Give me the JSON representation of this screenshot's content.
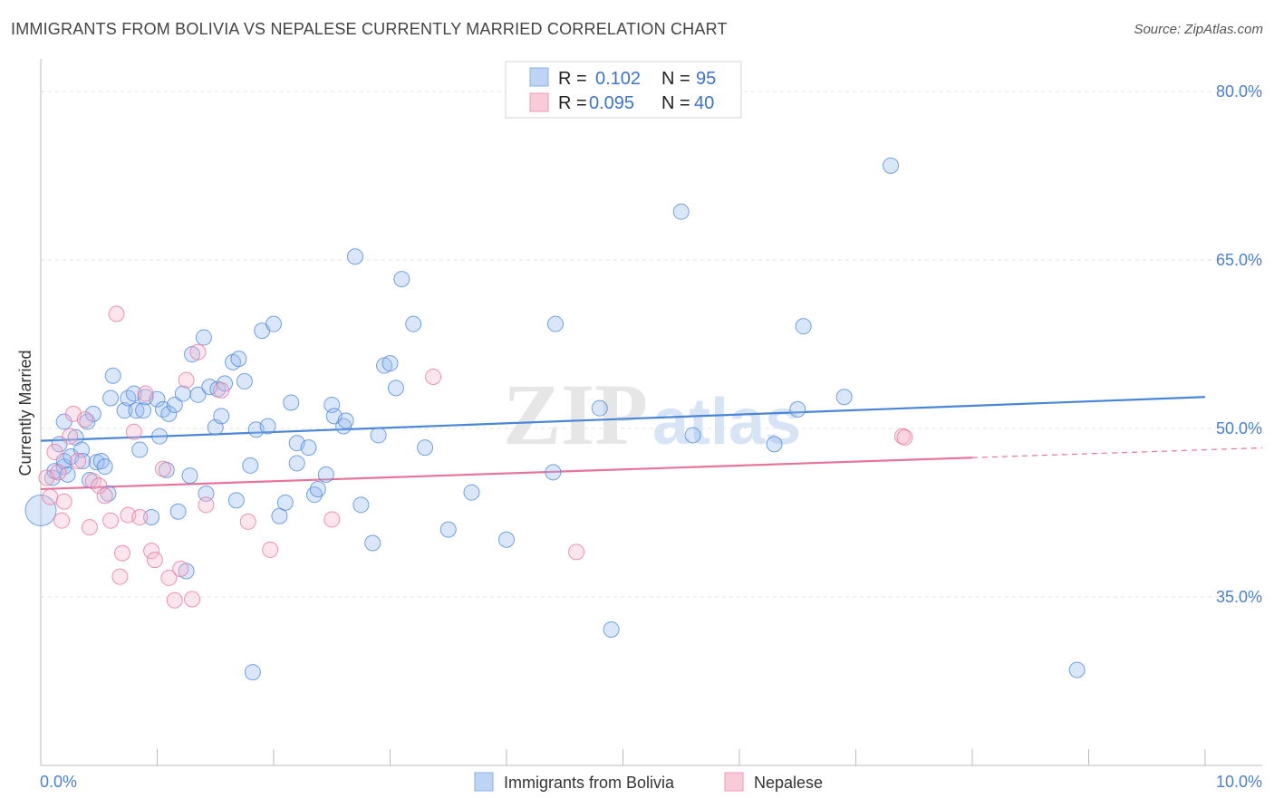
{
  "header": {
    "title": "IMMIGRANTS FROM BOLIVIA VS NEPALESE CURRENTLY MARRIED CORRELATION CHART",
    "source": "Source: ZipAtlas.com"
  },
  "watermark": {
    "zip": "ZIP",
    "atlas": "atlas"
  },
  "legend_top": [
    {
      "r_label": "R =",
      "r_value": "0.102",
      "n_label": "N =",
      "n_value": "95",
      "color": "#9dbff0"
    },
    {
      "r_label": "R =",
      "r_value": "0.095",
      "n_label": "N =",
      "n_value": "40",
      "color": "#f5b8cb"
    }
  ],
  "legend_bottom": [
    {
      "label": "Immigrants from Bolivia",
      "color": "#9dbff0"
    },
    {
      "label": "Nepalese",
      "color": "#f5b8cb"
    }
  ],
  "chart_data": {
    "type": "scatter",
    "ylabel": "Currently Married",
    "xlim": [
      0,
      10
    ],
    "ylim": [
      20,
      82.5
    ],
    "x_tick_labels": {
      "min": "0.0%",
      "max": "10.0%"
    },
    "y_ticks": [
      {
        "value": 35,
        "label": "35.0%"
      },
      {
        "value": 50,
        "label": "50.0%"
      },
      {
        "value": 65,
        "label": "65.0%"
      },
      {
        "value": 80,
        "label": "80.0%"
      }
    ],
    "grid": true,
    "legend_placement": "top-center",
    "series": [
      {
        "name": "Immigrants from Bolivia",
        "color": "#4a86d8",
        "fill": "rgba(150,187,240,0.35)",
        "trend": {
          "x0": 0,
          "y0": 48.9,
          "x1": 10,
          "y1": 52.8,
          "dash_from": null
        },
        "points": [
          [
            0.0,
            42.7
          ],
          [
            0.1,
            45.6
          ],
          [
            0.12,
            46.2
          ],
          [
            0.16,
            48.6
          ],
          [
            0.2,
            46.6
          ],
          [
            0.2,
            50.6
          ],
          [
            0.2,
            47.1
          ],
          [
            0.23,
            45.9
          ],
          [
            0.26,
            47.5
          ],
          [
            0.3,
            49.2
          ],
          [
            0.35,
            48.1
          ],
          [
            0.36,
            47.1
          ],
          [
            0.4,
            50.6
          ],
          [
            0.45,
            51.3
          ],
          [
            0.42,
            45.4
          ],
          [
            0.48,
            47.0
          ],
          [
            0.52,
            47.1
          ],
          [
            0.55,
            46.6
          ],
          [
            0.58,
            44.2
          ],
          [
            0.6,
            52.7
          ],
          [
            0.62,
            54.7
          ],
          [
            0.72,
            51.6
          ],
          [
            0.75,
            52.7
          ],
          [
            0.8,
            53.1
          ],
          [
            0.82,
            51.6
          ],
          [
            0.85,
            48.1
          ],
          [
            0.88,
            51.6
          ],
          [
            0.9,
            52.8
          ],
          [
            0.95,
            42.1
          ],
          [
            1.0,
            52.6
          ],
          [
            1.02,
            49.3
          ],
          [
            1.05,
            51.7
          ],
          [
            1.08,
            46.3
          ],
          [
            1.1,
            51.3
          ],
          [
            1.15,
            52.1
          ],
          [
            1.18,
            42.6
          ],
          [
            1.22,
            53.1
          ],
          [
            1.25,
            37.3
          ],
          [
            1.28,
            45.8
          ],
          [
            1.3,
            56.6
          ],
          [
            1.35,
            53.0
          ],
          [
            1.4,
            58.1
          ],
          [
            1.42,
            44.2
          ],
          [
            1.45,
            53.7
          ],
          [
            1.5,
            50.1
          ],
          [
            1.52,
            53.5
          ],
          [
            1.55,
            51.1
          ],
          [
            1.58,
            54.0
          ],
          [
            1.65,
            55.9
          ],
          [
            1.68,
            43.6
          ],
          [
            1.7,
            56.2
          ],
          [
            1.75,
            54.2
          ],
          [
            1.8,
            46.7
          ],
          [
            1.82,
            28.3
          ],
          [
            1.85,
            49.9
          ],
          [
            1.9,
            58.7
          ],
          [
            1.95,
            50.2
          ],
          [
            2.0,
            59.3
          ],
          [
            2.05,
            42.2
          ],
          [
            2.1,
            43.4
          ],
          [
            2.15,
            52.3
          ],
          [
            2.2,
            48.7
          ],
          [
            2.2,
            46.9
          ],
          [
            2.3,
            48.3
          ],
          [
            2.35,
            44.1
          ],
          [
            2.38,
            44.6
          ],
          [
            2.45,
            45.9
          ],
          [
            2.5,
            52.1
          ],
          [
            2.52,
            51.1
          ],
          [
            2.6,
            50.2
          ],
          [
            2.62,
            50.7
          ],
          [
            2.7,
            65.3
          ],
          [
            2.75,
            43.2
          ],
          [
            2.85,
            39.8
          ],
          [
            2.9,
            49.4
          ],
          [
            2.95,
            55.6
          ],
          [
            3.0,
            55.8
          ],
          [
            3.05,
            53.6
          ],
          [
            3.1,
            63.3
          ],
          [
            3.2,
            59.3
          ],
          [
            3.3,
            48.3
          ],
          [
            3.5,
            41.0
          ],
          [
            3.7,
            44.3
          ],
          [
            4.0,
            40.1
          ],
          [
            4.4,
            46.1
          ],
          [
            4.42,
            59.3
          ],
          [
            4.8,
            51.8
          ],
          [
            4.9,
            32.1
          ],
          [
            5.5,
            69.3
          ],
          [
            5.6,
            49.4
          ],
          [
            6.3,
            48.6
          ],
          [
            6.5,
            51.7
          ],
          [
            6.55,
            59.1
          ],
          [
            6.9,
            52.8
          ],
          [
            7.3,
            73.4
          ],
          [
            8.9,
            28.5
          ]
        ]
      },
      {
        "name": "Nepalese",
        "color": "#e8729c",
        "fill": "rgba(245,180,200,0.35)",
        "trend": {
          "x0": 0,
          "y0": 44.6,
          "x1": 10,
          "y1": 48.1,
          "dash_from": 8.0
        },
        "points": [
          [
            0.05,
            45.6
          ],
          [
            0.08,
            43.9
          ],
          [
            0.12,
            47.9
          ],
          [
            0.15,
            46.1
          ],
          [
            0.18,
            41.8
          ],
          [
            0.2,
            43.5
          ],
          [
            0.25,
            49.3
          ],
          [
            0.28,
            51.3
          ],
          [
            0.32,
            47.1
          ],
          [
            0.38,
            50.8
          ],
          [
            0.42,
            41.2
          ],
          [
            0.45,
            45.3
          ],
          [
            0.5,
            44.9
          ],
          [
            0.55,
            44.0
          ],
          [
            0.6,
            41.8
          ],
          [
            0.65,
            60.2
          ],
          [
            0.68,
            36.8
          ],
          [
            0.7,
            38.9
          ],
          [
            0.75,
            42.3
          ],
          [
            0.8,
            49.7
          ],
          [
            0.85,
            42.1
          ],
          [
            0.9,
            53.1
          ],
          [
            0.95,
            39.1
          ],
          [
            0.98,
            38.3
          ],
          [
            1.05,
            46.4
          ],
          [
            1.1,
            36.7
          ],
          [
            1.15,
            34.7
          ],
          [
            1.2,
            37.5
          ],
          [
            1.25,
            54.3
          ],
          [
            1.3,
            34.8
          ],
          [
            1.35,
            56.8
          ],
          [
            1.42,
            43.2
          ],
          [
            1.55,
            53.4
          ],
          [
            1.78,
            41.7
          ],
          [
            1.97,
            39.2
          ],
          [
            2.5,
            41.9
          ],
          [
            3.37,
            54.6
          ],
          [
            4.6,
            39.0
          ],
          [
            7.4,
            49.3
          ],
          [
            7.42,
            49.2
          ]
        ]
      }
    ]
  }
}
